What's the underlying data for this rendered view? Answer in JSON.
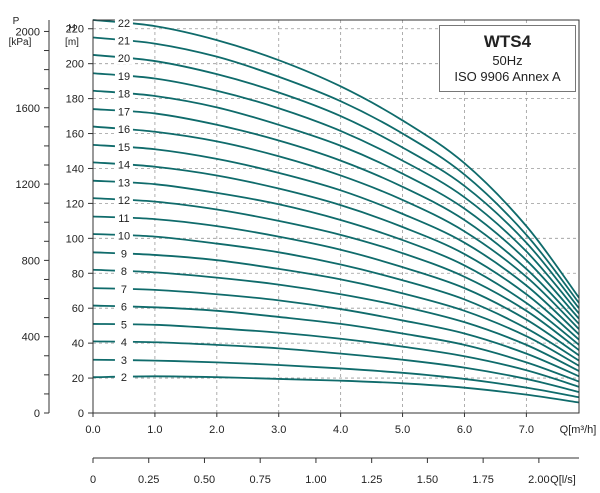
{
  "chart_data": {
    "type": "line",
    "title": "WTS4",
    "subtitle_lines": [
      "50Hz",
      "ISO 9906  Annex A"
    ],
    "left_axis": {
      "title": "P",
      "unit": "[kPa]",
      "ticks": [
        0,
        400,
        800,
        1200,
        1600,
        2000
      ],
      "range": [
        0,
        2060
      ]
    },
    "y_axis": {
      "title": "H",
      "unit": "[m]",
      "ticks": [
        0,
        20,
        40,
        60,
        80,
        100,
        120,
        140,
        160,
        180,
        200,
        220
      ],
      "range": [
        0,
        225
      ]
    },
    "x_axis": {
      "label": "Q[m³/h]",
      "ticks": [
        "0.0",
        "1.0",
        "2.0",
        "3.0",
        "4.0",
        "5.0",
        "6.0",
        "7.0"
      ],
      "range": [
        0,
        7.85
      ]
    },
    "x2_axis": {
      "label": "Q[l/s]",
      "ticks": [
        "0",
        "0.25",
        "0.50",
        "0.75",
        "1.00",
        "1.25",
        "1.50",
        "1.75",
        "2.00"
      ],
      "range": [
        0,
        2.18
      ]
    },
    "grid": true,
    "line_color": "#0f6b6b",
    "curve_x": [
      0,
      1.0,
      2.0,
      3.0,
      4.0,
      5.0,
      6.0,
      7.0,
      7.85
    ],
    "series": [
      {
        "name": "2",
        "values": [
          20.5,
          21,
          20.5,
          19.5,
          18.5,
          17,
          14.5,
          10.5,
          6
        ]
      },
      {
        "name": "3",
        "values": [
          30.5,
          30,
          29,
          27.5,
          25.5,
          23,
          19.5,
          14.5,
          9
        ]
      },
      {
        "name": "4",
        "values": [
          41,
          40.5,
          39,
          37,
          34,
          30.5,
          26,
          19.5,
          12
        ]
      },
      {
        "name": "5",
        "values": [
          51,
          50.5,
          48.5,
          46,
          42.5,
          38,
          32.5,
          24.5,
          15
        ]
      },
      {
        "name": "6",
        "values": [
          61.5,
          60.5,
          58.5,
          55,
          51,
          45.5,
          39,
          29,
          18
        ]
      },
      {
        "name": "7",
        "values": [
          71.5,
          70.5,
          68,
          64.5,
          59.5,
          53,
          45.5,
          34,
          21
        ]
      },
      {
        "name": "8",
        "values": [
          82,
          80.5,
          77.5,
          73.5,
          68,
          61,
          52,
          39,
          24
        ]
      },
      {
        "name": "9",
        "values": [
          92,
          90.5,
          87.5,
          82.5,
          76.5,
          68.5,
          58.5,
          44,
          27
        ]
      },
      {
        "name": "10",
        "values": [
          102.5,
          101,
          97,
          92,
          85,
          76,
          65,
          48.5,
          30
        ]
      },
      {
        "name": "11",
        "values": [
          112.5,
          111,
          107,
          101,
          93.5,
          83.5,
          71.5,
          53.5,
          33
        ]
      },
      {
        "name": "12",
        "values": [
          123,
          121,
          116.5,
          110,
          102,
          91.5,
          78,
          58.5,
          36
        ]
      },
      {
        "name": "13",
        "values": [
          133,
          131,
          126,
          119.5,
          110.5,
          99,
          84.5,
          63,
          39
        ]
      },
      {
        "name": "14",
        "values": [
          143.5,
          141,
          136,
          128.5,
          119,
          106.5,
          91,
          68,
          42
        ]
      },
      {
        "name": "15",
        "values": [
          153.5,
          151,
          145.5,
          137.5,
          127.5,
          114,
          97.5,
          73,
          45
        ]
      },
      {
        "name": "16",
        "values": [
          164,
          161,
          155.5,
          147,
          136,
          122,
          104,
          78,
          48
        ]
      },
      {
        "name": "17",
        "values": [
          174,
          171.5,
          165,
          156,
          144.5,
          129.5,
          110.5,
          82.5,
          51
        ]
      },
      {
        "name": "18",
        "values": [
          184.5,
          181.5,
          175,
          165,
          153,
          137,
          117,
          87.5,
          54
        ]
      },
      {
        "name": "19",
        "values": [
          194.5,
          191.5,
          184.5,
          174.5,
          161.5,
          144.5,
          123.5,
          92.5,
          57
        ]
      },
      {
        "name": "20",
        "values": [
          205,
          201.5,
          194,
          183.5,
          170,
          152,
          130,
          97.5,
          60
        ]
      },
      {
        "name": "21",
        "values": [
          215,
          211.5,
          204,
          192.5,
          178.5,
          160,
          136.5,
          102,
          63
        ]
      },
      {
        "name": "22",
        "values": [
          225,
          221.5,
          213.5,
          202,
          187,
          167.5,
          143,
          107,
          66
        ]
      }
    ]
  }
}
